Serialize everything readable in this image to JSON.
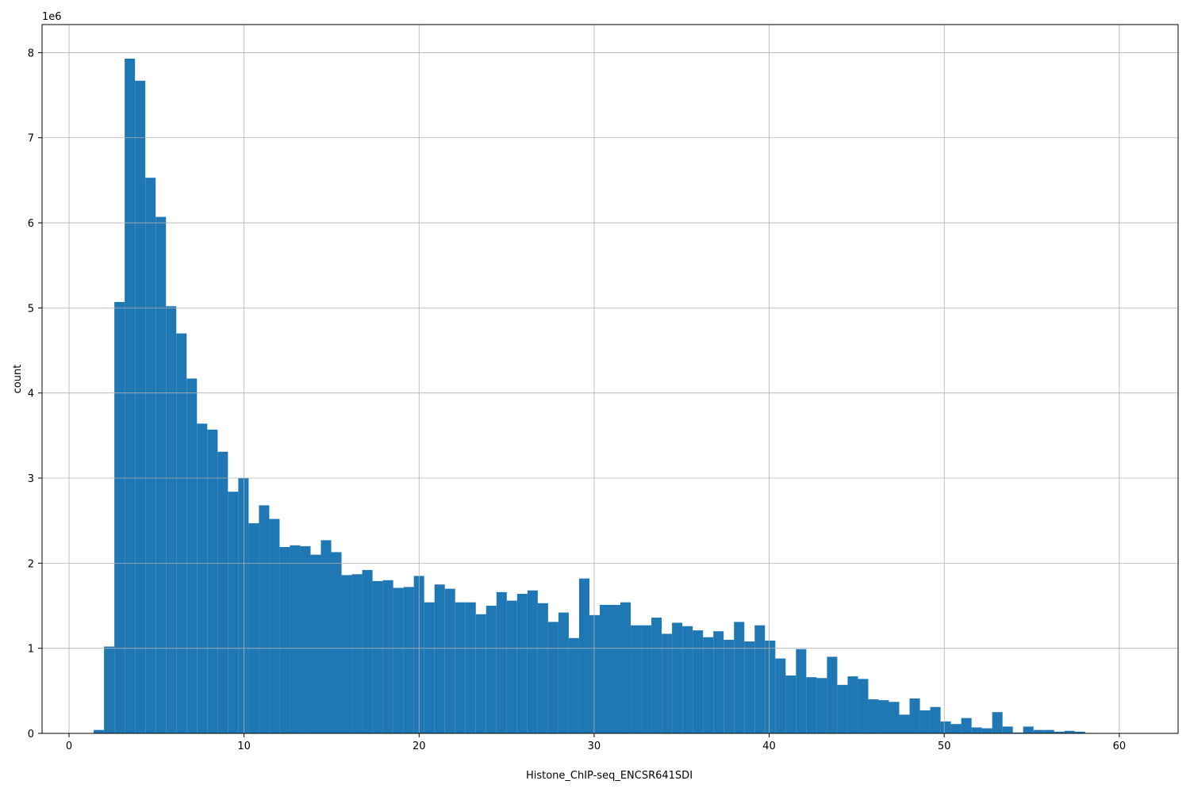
{
  "chart_data": {
    "type": "histogram",
    "xlabel": "Histone_ChIP-seq_ENCSR641SDI",
    "ylabel": "count",
    "y_offset_label": "1e6",
    "color": "#1f77b4",
    "grid": true,
    "xlim": [
      -1.54,
      63.36
    ],
    "ylim": [
      0,
      8.33
    ],
    "xticks": [
      0,
      10,
      20,
      30,
      40,
      50,
      60
    ],
    "yticks": [
      0,
      1,
      2,
      3,
      4,
      5,
      6,
      7,
      8
    ],
    "bins": [
      1.41,
      2.0,
      2.59,
      3.18,
      3.77,
      4.36,
      4.95,
      5.54,
      6.13,
      6.72,
      7.31,
      7.9,
      8.49,
      9.08,
      9.67,
      10.26,
      10.85,
      11.44,
      12.03,
      12.62,
      13.21,
      13.8,
      14.39,
      14.98,
      15.57,
      16.16,
      16.75,
      17.34,
      17.93,
      18.52,
      19.11,
      19.7,
      20.29,
      20.88,
      21.47,
      22.06,
      22.65,
      23.24,
      23.83,
      24.42,
      25.01,
      25.6,
      26.19,
      26.78,
      27.37,
      27.96,
      28.55,
      29.14,
      29.73,
      30.32,
      30.91,
      31.5,
      32.09,
      32.68,
      33.27,
      33.86,
      34.45,
      35.04,
      35.63,
      36.22,
      36.81,
      37.4,
      37.99,
      38.58,
      39.17,
      39.76,
      40.35,
      40.94,
      41.53,
      42.12,
      42.71,
      43.3,
      43.89,
      44.48,
      45.07,
      45.66,
      46.25,
      46.84,
      47.43,
      48.02,
      48.61,
      49.2,
      49.79,
      50.38,
      50.97,
      51.56,
      52.15,
      52.74,
      53.33,
      53.92,
      54.51,
      55.1,
      55.69,
      56.28,
      56.87,
      57.46,
      58.05,
      58.64,
      59.23,
      59.82,
      60.41
    ],
    "values": [
      0.04,
      1.02,
      5.07,
      7.93,
      7.67,
      6.53,
      6.07,
      5.02,
      4.7,
      4.17,
      3.64,
      3.57,
      3.31,
      2.84,
      3.0,
      2.47,
      2.68,
      2.52,
      2.19,
      2.21,
      2.2,
      2.1,
      2.27,
      2.13,
      1.86,
      1.87,
      1.92,
      1.79,
      1.8,
      1.71,
      1.72,
      1.85,
      1.54,
      1.75,
      1.7,
      1.54,
      1.54,
      1.4,
      1.5,
      1.66,
      1.56,
      1.64,
      1.68,
      1.53,
      1.31,
      1.42,
      1.12,
      1.82,
      1.39,
      1.51,
      1.51,
      1.54,
      1.27,
      1.27,
      1.36,
      1.17,
      1.3,
      1.26,
      1.21,
      1.13,
      1.2,
      1.1,
      1.31,
      1.08,
      1.27,
      1.09,
      0.88,
      0.68,
      0.99,
      0.66,
      0.65,
      0.9,
      0.57,
      0.67,
      0.64,
      0.4,
      0.39,
      0.37,
      0.22,
      0.41,
      0.27,
      0.31,
      0.14,
      0.11,
      0.18,
      0.07,
      0.06,
      0.25,
      0.08,
      0.01,
      0.08,
      0.04,
      0.04,
      0.02,
      0.03,
      0.02,
      0.005,
      0.003,
      0.002,
      0.001
    ]
  }
}
